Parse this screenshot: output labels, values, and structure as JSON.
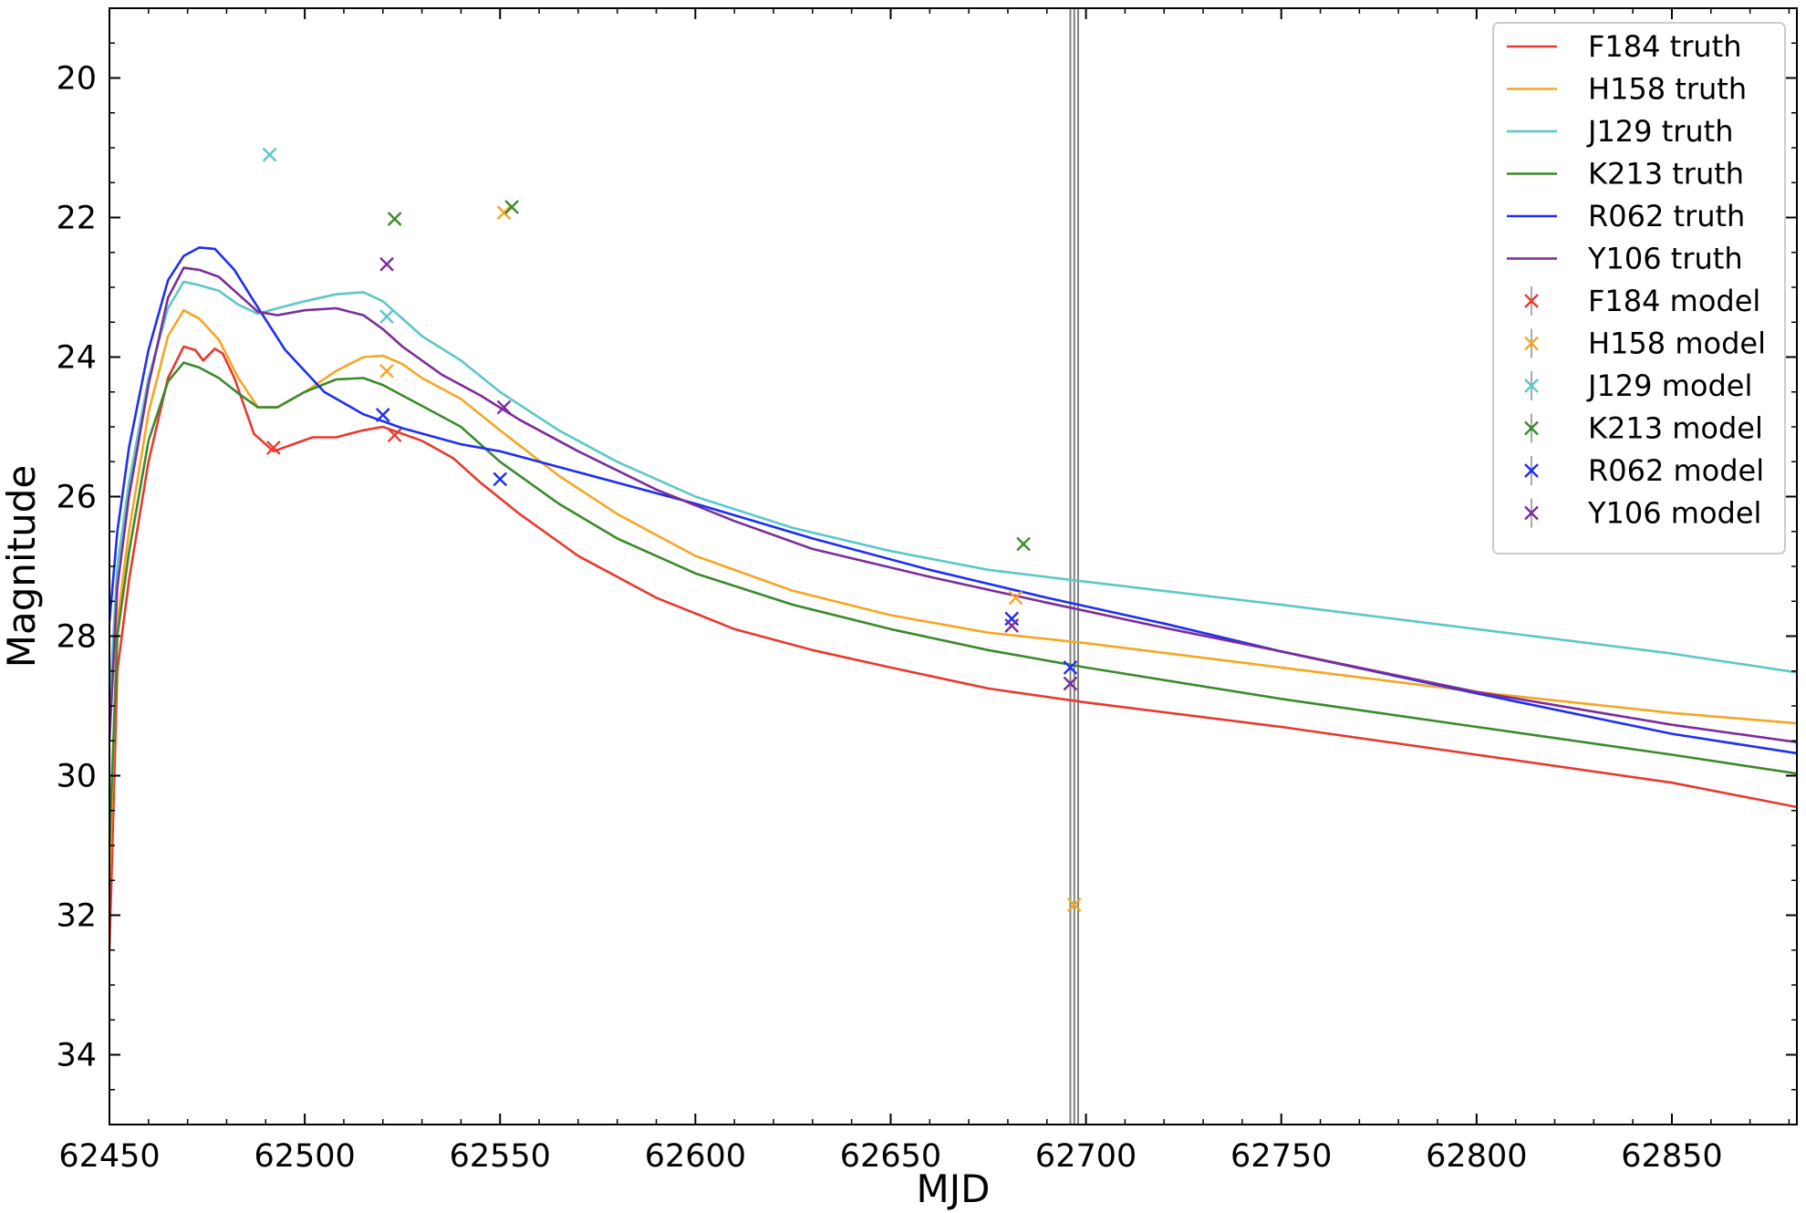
{
  "chart_data": {
    "type": "line",
    "xlabel": "MJD",
    "ylabel": "Magnitude",
    "xlim": [
      62450,
      62882
    ],
    "ylim": [
      35,
      19
    ],
    "y_inverted": true,
    "grid": false,
    "legend_position": "top-right",
    "xticks": [
      62450,
      62500,
      62550,
      62600,
      62650,
      62700,
      62750,
      62800,
      62850
    ],
    "yticks": [
      20,
      22,
      24,
      26,
      28,
      30,
      32,
      34
    ],
    "vertical_lines": [
      62696,
      62697,
      62698
    ],
    "series": [
      {
        "name": "F184 truth",
        "kind": "line",
        "color": "#e8392e",
        "points": [
          [
            62450,
            32.5
          ],
          [
            62452,
            28.5
          ],
          [
            62455,
            27.2
          ],
          [
            62460,
            25.5
          ],
          [
            62465,
            24.3
          ],
          [
            62469,
            23.85
          ],
          [
            62472,
            23.9
          ],
          [
            62474,
            24.05
          ],
          [
            62477,
            23.88
          ],
          [
            62479,
            23.95
          ],
          [
            62482,
            24.3
          ],
          [
            62487,
            25.1
          ],
          [
            62492,
            25.35
          ],
          [
            62497,
            25.25
          ],
          [
            62502,
            25.15
          ],
          [
            62508,
            25.15
          ],
          [
            62515,
            25.05
          ],
          [
            62520,
            25.0
          ],
          [
            62525,
            25.1
          ],
          [
            62530,
            25.2
          ],
          [
            62538,
            25.45
          ],
          [
            62545,
            25.8
          ],
          [
            62555,
            26.25
          ],
          [
            62570,
            26.85
          ],
          [
            62590,
            27.45
          ],
          [
            62610,
            27.9
          ],
          [
            62630,
            28.2
          ],
          [
            62650,
            28.45
          ],
          [
            62675,
            28.75
          ],
          [
            62700,
            28.95
          ],
          [
            62750,
            29.3
          ],
          [
            62800,
            29.7
          ],
          [
            62850,
            30.1
          ],
          [
            62882,
            30.45
          ]
        ]
      },
      {
        "name": "H158 truth",
        "kind": "line",
        "color": "#f5a623",
        "points": [
          [
            62450,
            31.5
          ],
          [
            62452,
            27.8
          ],
          [
            62455,
            26.5
          ],
          [
            62460,
            24.8
          ],
          [
            62465,
            23.7
          ],
          [
            62469,
            23.33
          ],
          [
            62473,
            23.45
          ],
          [
            62478,
            23.75
          ],
          [
            62483,
            24.3
          ],
          [
            62488,
            24.72
          ],
          [
            62493,
            24.72
          ],
          [
            62500,
            24.5
          ],
          [
            62508,
            24.2
          ],
          [
            62515,
            24.0
          ],
          [
            62520,
            23.98
          ],
          [
            62525,
            24.1
          ],
          [
            62530,
            24.3
          ],
          [
            62540,
            24.6
          ],
          [
            62550,
            25.05
          ],
          [
            62565,
            25.7
          ],
          [
            62580,
            26.25
          ],
          [
            62600,
            26.85
          ],
          [
            62625,
            27.35
          ],
          [
            62650,
            27.7
          ],
          [
            62675,
            27.95
          ],
          [
            62700,
            28.1
          ],
          [
            62750,
            28.45
          ],
          [
            62800,
            28.8
          ],
          [
            62850,
            29.1
          ],
          [
            62882,
            29.25
          ]
        ]
      },
      {
        "name": "J129 truth",
        "kind": "line",
        "color": "#5bc8c8",
        "points": [
          [
            62450,
            29.0
          ],
          [
            62452,
            27.0
          ],
          [
            62455,
            25.8
          ],
          [
            62460,
            24.3
          ],
          [
            62465,
            23.3
          ],
          [
            62469,
            22.92
          ],
          [
            62473,
            22.97
          ],
          [
            62478,
            23.05
          ],
          [
            62483,
            23.25
          ],
          [
            62488,
            23.38
          ],
          [
            62493,
            23.3
          ],
          [
            62500,
            23.2
          ],
          [
            62508,
            23.1
          ],
          [
            62515,
            23.07
          ],
          [
            62520,
            23.2
          ],
          [
            62525,
            23.45
          ],
          [
            62530,
            23.7
          ],
          [
            62540,
            24.05
          ],
          [
            62550,
            24.5
          ],
          [
            62565,
            25.05
          ],
          [
            62580,
            25.5
          ],
          [
            62600,
            26.0
          ],
          [
            62625,
            26.45
          ],
          [
            62650,
            26.78
          ],
          [
            62675,
            27.05
          ],
          [
            62700,
            27.22
          ],
          [
            62750,
            27.55
          ],
          [
            62800,
            27.9
          ],
          [
            62850,
            28.25
          ],
          [
            62882,
            28.52
          ]
        ]
      },
      {
        "name": "K213 truth",
        "kind": "line",
        "color": "#3a8a2a",
        "points": [
          [
            62450,
            31.0
          ],
          [
            62452,
            28.0
          ],
          [
            62455,
            26.8
          ],
          [
            62460,
            25.2
          ],
          [
            62465,
            24.35
          ],
          [
            62469,
            24.08
          ],
          [
            62473,
            24.15
          ],
          [
            62478,
            24.3
          ],
          [
            62483,
            24.52
          ],
          [
            62488,
            24.72
          ],
          [
            62493,
            24.72
          ],
          [
            62500,
            24.5
          ],
          [
            62508,
            24.32
          ],
          [
            62515,
            24.3
          ],
          [
            62520,
            24.4
          ],
          [
            62525,
            24.55
          ],
          [
            62530,
            24.7
          ],
          [
            62540,
            25.0
          ],
          [
            62550,
            25.5
          ],
          [
            62565,
            26.1
          ],
          [
            62580,
            26.6
          ],
          [
            62600,
            27.1
          ],
          [
            62625,
            27.55
          ],
          [
            62650,
            27.9
          ],
          [
            62675,
            28.2
          ],
          [
            62700,
            28.45
          ],
          [
            62750,
            28.9
          ],
          [
            62800,
            29.3
          ],
          [
            62850,
            29.7
          ],
          [
            62882,
            29.97
          ]
        ]
      },
      {
        "name": "R062 truth",
        "kind": "line",
        "color": "#1d2ff0",
        "points": [
          [
            62450,
            27.8
          ],
          [
            62452,
            26.5
          ],
          [
            62455,
            25.3
          ],
          [
            62460,
            23.9
          ],
          [
            62465,
            22.9
          ],
          [
            62469,
            22.55
          ],
          [
            62473,
            22.43
          ],
          [
            62477,
            22.45
          ],
          [
            62482,
            22.75
          ],
          [
            62487,
            23.2
          ],
          [
            62495,
            23.9
          ],
          [
            62505,
            24.5
          ],
          [
            62515,
            24.82
          ],
          [
            62525,
            25.02
          ],
          [
            62540,
            25.25
          ],
          [
            62550,
            25.35
          ],
          [
            62570,
            25.65
          ],
          [
            62600,
            26.1
          ],
          [
            62630,
            26.6
          ],
          [
            62660,
            27.05
          ],
          [
            62690,
            27.45
          ],
          [
            62720,
            27.82
          ],
          [
            62750,
            28.22
          ],
          [
            62800,
            28.82
          ],
          [
            62850,
            29.4
          ],
          [
            62882,
            29.68
          ]
        ]
      },
      {
        "name": "Y106 truth",
        "kind": "line",
        "color": "#7b2d9a",
        "points": [
          [
            62450,
            29.5
          ],
          [
            62452,
            27.3
          ],
          [
            62455,
            26.0
          ],
          [
            62460,
            24.4
          ],
          [
            62465,
            23.15
          ],
          [
            62469,
            22.72
          ],
          [
            62473,
            22.75
          ],
          [
            62478,
            22.85
          ],
          [
            62483,
            23.1
          ],
          [
            62488,
            23.35
          ],
          [
            62493,
            23.4
          ],
          [
            62500,
            23.33
          ],
          [
            62508,
            23.3
          ],
          [
            62515,
            23.4
          ],
          [
            62520,
            23.6
          ],
          [
            62525,
            23.85
          ],
          [
            62535,
            24.25
          ],
          [
            62545,
            24.55
          ],
          [
            62555,
            24.9
          ],
          [
            62570,
            25.35
          ],
          [
            62590,
            25.9
          ],
          [
            62610,
            26.35
          ],
          [
            62630,
            26.75
          ],
          [
            62660,
            27.15
          ],
          [
            62690,
            27.52
          ],
          [
            62720,
            27.88
          ],
          [
            62750,
            28.22
          ],
          [
            62800,
            28.8
          ],
          [
            62850,
            29.27
          ],
          [
            62882,
            29.52
          ]
        ]
      },
      {
        "name": "F184 model",
        "kind": "markers",
        "color": "#e8392e",
        "points": [
          [
            62492,
            25.3
          ],
          [
            62523,
            25.12
          ]
        ]
      },
      {
        "name": "H158 model",
        "kind": "markers",
        "color": "#f5a623",
        "points": [
          [
            62521,
            24.2
          ],
          [
            62551,
            21.93
          ],
          [
            62682,
            27.45
          ],
          [
            62697,
            31.85
          ]
        ]
      },
      {
        "name": "J129 model",
        "kind": "markers",
        "color": "#5bc8c8",
        "points": [
          [
            62491,
            21.1
          ],
          [
            62521,
            23.42
          ]
        ]
      },
      {
        "name": "K213 model",
        "kind": "markers",
        "color": "#3a8a2a",
        "points": [
          [
            62523,
            22.02
          ],
          [
            62553,
            21.85
          ],
          [
            62684,
            26.68
          ]
        ]
      },
      {
        "name": "R062 model",
        "kind": "markers",
        "color": "#1d2ff0",
        "points": [
          [
            62520,
            24.83
          ],
          [
            62550,
            25.75
          ],
          [
            62681,
            27.75
          ],
          [
            62696,
            28.45
          ]
        ]
      },
      {
        "name": "Y106 model",
        "kind": "markers",
        "color": "#7b2d9a",
        "points": [
          [
            62521,
            22.67
          ],
          [
            62551,
            24.72
          ],
          [
            62681,
            27.85
          ],
          [
            62696,
            28.68
          ]
        ]
      }
    ]
  }
}
